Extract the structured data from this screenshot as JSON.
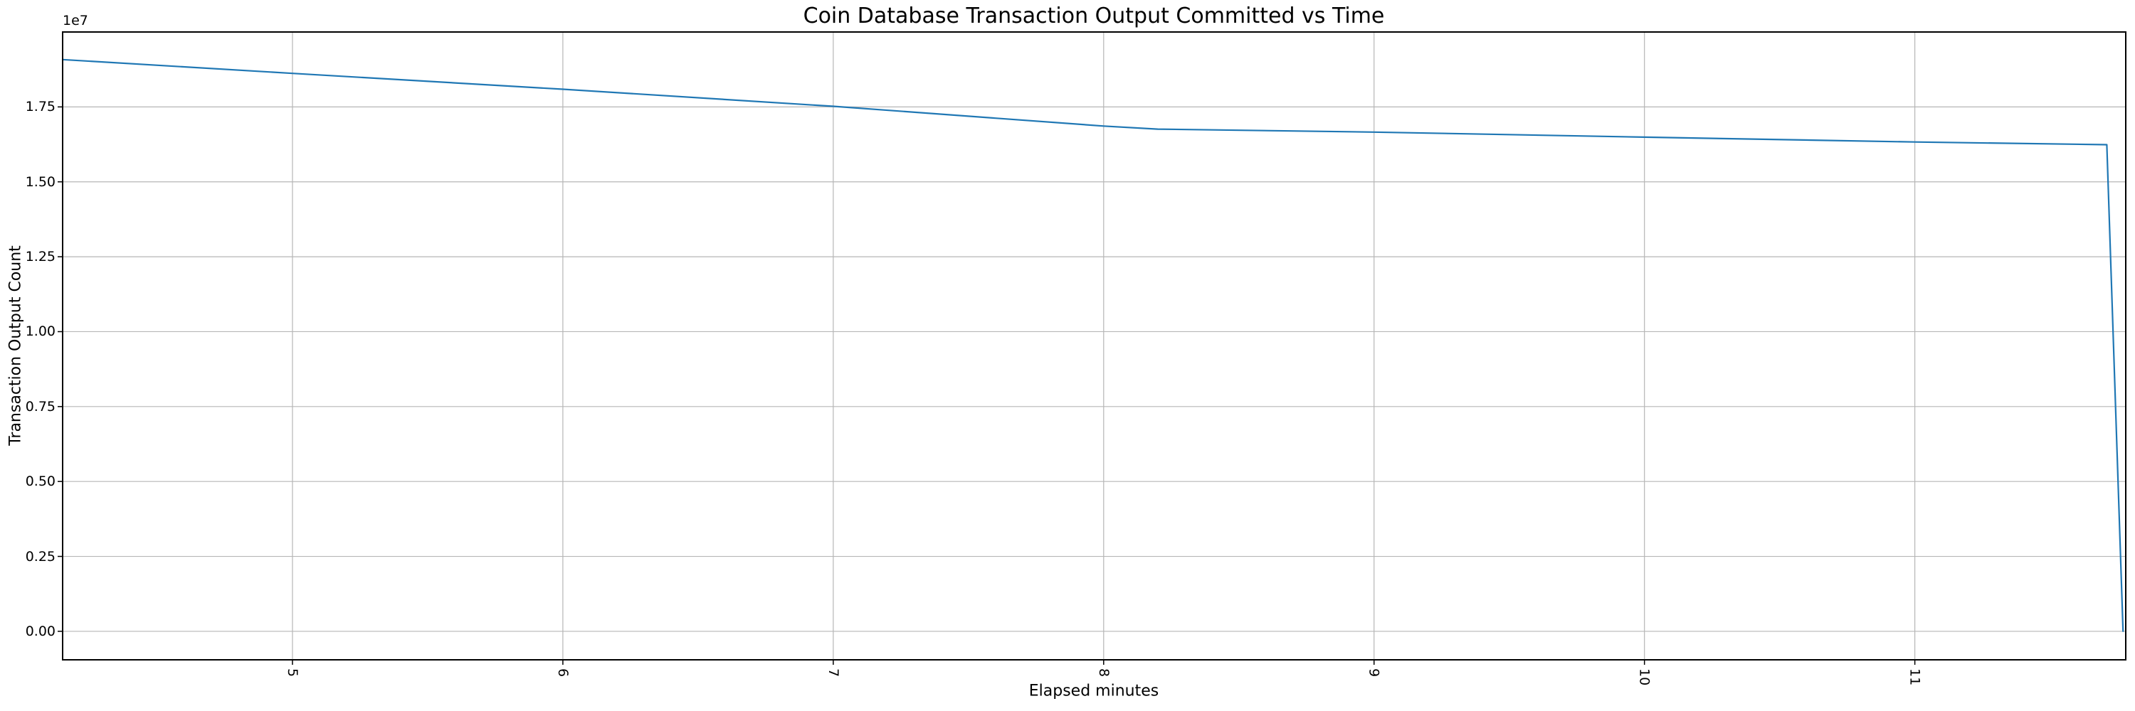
{
  "figure": {
    "title": "Coin Database Transaction Output Committed vs Time",
    "xlabel": "Elapsed minutes",
    "ylabel": "Transaction Output Count",
    "offset_label": "1e7"
  },
  "style": {
    "line_color": "#1f77b4",
    "grid_color": "#b6b6b6",
    "spine_color": "#000000",
    "tick_color": "#000000",
    "background": "#ffffff"
  },
  "chart_data": {
    "type": "line",
    "title": "Coin Database Transaction Output Committed vs Time",
    "xlabel": "Elapsed minutes",
    "ylabel": "Transaction Output Count",
    "y_offset_label": "1e7",
    "grid": true,
    "legend": "none",
    "x_tick_rotation": 90,
    "xlim": [
      4.15,
      11.78
    ],
    "ylim": [
      -951000,
      20000000
    ],
    "x_ticks": [
      {
        "value": 5,
        "label": "5"
      },
      {
        "value": 6,
        "label": "6"
      },
      {
        "value": 7,
        "label": "7"
      },
      {
        "value": 8,
        "label": "8"
      },
      {
        "value": 9,
        "label": "9"
      },
      {
        "value": 10,
        "label": "10"
      },
      {
        "value": 11,
        "label": "11"
      }
    ],
    "y_ticks": [
      {
        "value": 0,
        "label": "0.00"
      },
      {
        "value": 2500000,
        "label": "0.25"
      },
      {
        "value": 5000000,
        "label": "0.50"
      },
      {
        "value": 7500000,
        "label": "0.75"
      },
      {
        "value": 10000000,
        "label": "1.00"
      },
      {
        "value": 12500000,
        "label": "1.25"
      },
      {
        "value": 15000000,
        "label": "1.50"
      },
      {
        "value": 17500000,
        "label": "1.75"
      }
    ],
    "series": [
      {
        "name": "transaction-output-count",
        "color": "#1f77b4",
        "points": [
          [
            4.15,
            19080000
          ],
          [
            5.0,
            18620000
          ],
          [
            6.0,
            18090000
          ],
          [
            7.0,
            17520000
          ],
          [
            8.0,
            16860000
          ],
          [
            8.2,
            16760000
          ],
          [
            9.0,
            16660000
          ],
          [
            10.0,
            16490000
          ],
          [
            11.0,
            16330000
          ],
          [
            11.71,
            16240000
          ],
          [
            11.77,
            0
          ]
        ]
      }
    ]
  }
}
